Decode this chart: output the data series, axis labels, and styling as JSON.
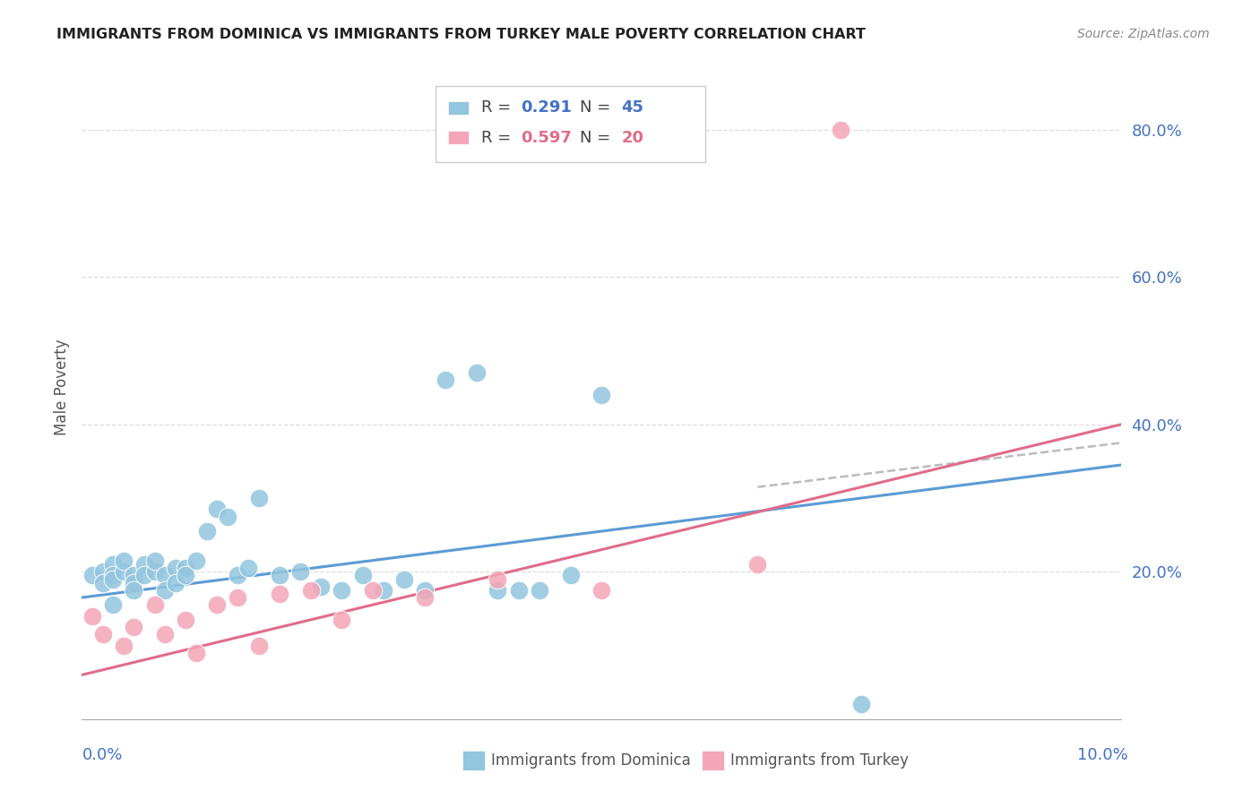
{
  "title": "IMMIGRANTS FROM DOMINICA VS IMMIGRANTS FROM TURKEY MALE POVERTY CORRELATION CHART",
  "source": "Source: ZipAtlas.com",
  "ylabel": "Male Poverty",
  "xlim": [
    0.0,
    0.1
  ],
  "ylim": [
    0.0,
    0.9
  ],
  "dominica_R": "0.291",
  "dominica_N": "45",
  "turkey_R": "0.597",
  "turkey_N": "20",
  "dominica_color": "#92C5DE",
  "turkey_color": "#F4A6B8",
  "dominica_line_color": "#5B9BD5",
  "turkey_line_color": "#E06C8A",
  "dashed_line_color": "#BBBBBB",
  "background_color": "#FFFFFF",
  "grid_color": "#DDDDDD",
  "right_axis_color": "#4472C4",
  "dominica_x": [
    0.001,
    0.002,
    0.002,
    0.003,
    0.003,
    0.003,
    0.004,
    0.004,
    0.005,
    0.005,
    0.005,
    0.006,
    0.006,
    0.007,
    0.007,
    0.008,
    0.008,
    0.009,
    0.009,
    0.01,
    0.01,
    0.011,
    0.012,
    0.013,
    0.014,
    0.015,
    0.016,
    0.017,
    0.019,
    0.021,
    0.023,
    0.025,
    0.027,
    0.029,
    0.031,
    0.033,
    0.035,
    0.038,
    0.04,
    0.042,
    0.044,
    0.047,
    0.05,
    0.075,
    0.003
  ],
  "dominica_y": [
    0.195,
    0.2,
    0.185,
    0.21,
    0.195,
    0.19,
    0.2,
    0.215,
    0.195,
    0.185,
    0.175,
    0.21,
    0.195,
    0.2,
    0.215,
    0.195,
    0.175,
    0.205,
    0.185,
    0.205,
    0.195,
    0.215,
    0.255,
    0.285,
    0.275,
    0.195,
    0.205,
    0.3,
    0.195,
    0.2,
    0.18,
    0.175,
    0.195,
    0.175,
    0.19,
    0.175,
    0.46,
    0.47,
    0.175,
    0.175,
    0.175,
    0.195,
    0.44,
    0.02,
    0.155
  ],
  "turkey_x": [
    0.001,
    0.002,
    0.004,
    0.005,
    0.007,
    0.008,
    0.01,
    0.011,
    0.013,
    0.015,
    0.017,
    0.019,
    0.022,
    0.025,
    0.028,
    0.033,
    0.04,
    0.05,
    0.065,
    0.073
  ],
  "turkey_y": [
    0.14,
    0.115,
    0.1,
    0.125,
    0.155,
    0.115,
    0.135,
    0.09,
    0.155,
    0.165,
    0.1,
    0.17,
    0.175,
    0.135,
    0.175,
    0.165,
    0.19,
    0.175,
    0.21,
    0.8
  ],
  "dominica_line_x": [
    0.0,
    0.1
  ],
  "dominica_line_y": [
    0.165,
    0.345
  ],
  "turkey_line_x": [
    0.0,
    0.1
  ],
  "turkey_line_y": [
    0.06,
    0.4
  ],
  "dashed_line_x": [
    0.065,
    0.1
  ],
  "dashed_line_y": [
    0.315,
    0.375
  ]
}
